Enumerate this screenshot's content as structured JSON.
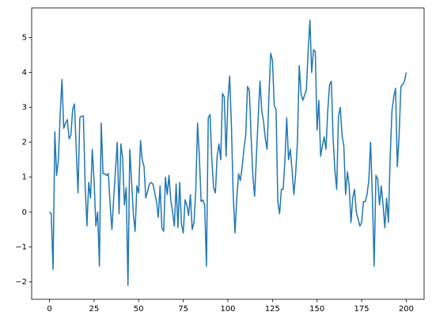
{
  "chart_data": {
    "type": "line",
    "color": "#1f77b4",
    "x": [
      0,
      1,
      2,
      3,
      4,
      5,
      6,
      7,
      8,
      9,
      10,
      11,
      12,
      13,
      14,
      15,
      16,
      17,
      18,
      19,
      20,
      21,
      22,
      23,
      24,
      25,
      26,
      27,
      28,
      29,
      30,
      31,
      32,
      33,
      34,
      35,
      36,
      37,
      38,
      39,
      40,
      41,
      42,
      43,
      44,
      45,
      46,
      47,
      48,
      49,
      50,
      51,
      52,
      53,
      54,
      55,
      56,
      57,
      58,
      59,
      60,
      61,
      62,
      63,
      64,
      65,
      66,
      67,
      68,
      69,
      70,
      71,
      72,
      73,
      74,
      75,
      76,
      77,
      78,
      79,
      80,
      81,
      82,
      83,
      84,
      85,
      86,
      87,
      88,
      89,
      90,
      91,
      92,
      93,
      94,
      95,
      96,
      97,
      98,
      99,
      100,
      101,
      102,
      103,
      104,
      105,
      106,
      107,
      108,
      109,
      110,
      111,
      112,
      113,
      114,
      115,
      116,
      117,
      118,
      119,
      120,
      121,
      122,
      123,
      124,
      125,
      126,
      127,
      128,
      129,
      130,
      131,
      132,
      133,
      134,
      135,
      136,
      137,
      138,
      139,
      140,
      141,
      142,
      143,
      144,
      145,
      146,
      147,
      148,
      149,
      150,
      151,
      152,
      153,
      154,
      155,
      156,
      157,
      158,
      159,
      160,
      161,
      162,
      163,
      164,
      165,
      166,
      167,
      168,
      169,
      170,
      171,
      172,
      173,
      174,
      175,
      176,
      177,
      178,
      179,
      180,
      181,
      182,
      183,
      184,
      185,
      186,
      187,
      188,
      189,
      190,
      191,
      192,
      193,
      194,
      195,
      196,
      197,
      198,
      199,
      200
    ],
    "values": [
      0,
      -0.05,
      -1.65,
      2.3,
      1.05,
      1.5,
      2.8,
      3.8,
      2.4,
      2.55,
      2.65,
      2.1,
      2.2,
      2.95,
      3.1,
      1.8,
      0.55,
      2.7,
      2.75,
      2.75,
      0.75,
      -0.4,
      0.85,
      0.4,
      1.8,
      0.9,
      -0.4,
      0,
      -1.55,
      2.55,
      1.1,
      1.1,
      1.05,
      1.1,
      0.2,
      -0.5,
      0.4,
      1.2,
      2,
      -0.05,
      1.95,
      1.55,
      0.2,
      0.7,
      -2.1,
      1.8,
      0.9,
      -0.05,
      -0.55,
      0.75,
      0.55,
      2.05,
      1.5,
      1.3,
      0.4,
      0.6,
      0.8,
      0.85,
      0.8,
      0.55,
      0.3,
      -0.15,
      0.75,
      -0.45,
      -0.55,
      1,
      0.5,
      1.05,
      0.35,
      0,
      -0.4,
      0.8,
      -0.45,
      0.85,
      -0.35,
      -0.6,
      0.35,
      0.2,
      -0.1,
      0.5,
      -0.5,
      -0.3,
      0.6,
      2.55,
      1.6,
      0.3,
      0.35,
      0.2,
      -1.55,
      2.7,
      2.8,
      1.5,
      0.7,
      0.55,
      1.6,
      1.95,
      1.5,
      3.4,
      3.3,
      1.6,
      3.2,
      3.9,
      2.45,
      0.5,
      -0.6,
      0.4,
      1.1,
      0.9,
      1.3,
      1.8,
      2.2,
      3.6,
      3.5,
      2.2,
      1.05,
      0.45,
      1.6,
      2.7,
      3.75,
      2.9,
      2.6,
      2.1,
      1.8,
      3.3,
      4.55,
      4.35,
      3.05,
      2.95,
      0.3,
      -0.05,
      0.65,
      0.65,
      1.5,
      2.7,
      1.5,
      1.8,
      1.2,
      0.5,
      1.1,
      2,
      4.2,
      3.4,
      3.2,
      3.35,
      3.5,
      4.6,
      5.5,
      4,
      4.65,
      4.6,
      2.35,
      3.2,
      1.6,
      1.9,
      2.15,
      1.8,
      2.9,
      3.65,
      3.75,
      2.1,
      1.2,
      0.65,
      2.75,
      3,
      2.2,
      1.9,
      0.5,
      1.15,
      0.75,
      -0.3,
      0.4,
      0.65,
      0,
      -0.2,
      -0.4,
      -0.3,
      0.3,
      0.3,
      0.5,
      0.9,
      2,
      0.45,
      -1.55,
      1.05,
      0.95,
      0.2,
      0.75,
      0.2,
      -0.45,
      0.4,
      -0.3,
      1.6,
      2.9,
      3.3,
      3.55,
      1.3,
      2.2,
      3.6,
      3.65,
      3.75,
      4
    ],
    "xlim": [
      -10,
      210
    ],
    "xticks": [
      0,
      25,
      50,
      75,
      100,
      125,
      150,
      175,
      200
    ],
    "ylim": [
      -2.5,
      5.85
    ],
    "yticks": [
      {
        "value": -2,
        "label": "−2"
      },
      {
        "value": -1,
        "label": "−1"
      },
      0,
      1,
      2,
      3,
      4,
      5
    ]
  }
}
